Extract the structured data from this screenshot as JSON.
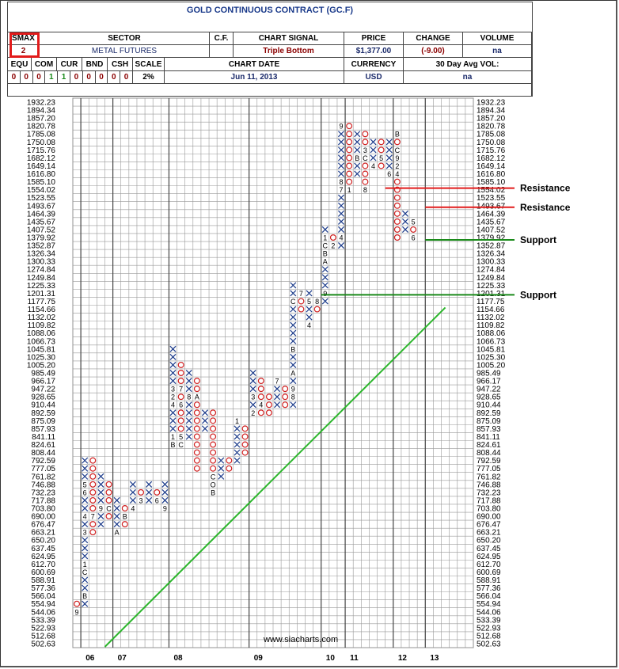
{
  "header": {
    "title": "GOLD CONTINUOUS CONTRACT (GC.F)",
    "smax_label": "SMAX",
    "smax_value": "2",
    "sector_label": "SECTOR",
    "sector_value": "METAL FUTURES",
    "cf_label": "C.F.",
    "chart_signal_label": "CHART SIGNAL",
    "chart_signal_value": "Triple Bottom",
    "price_label": "PRICE",
    "price_value": "$1,377.00",
    "change_label": "CHANGE",
    "change_value": "(-9.00)",
    "volume_label": "VOLUME",
    "volume_value": "na",
    "equ_label": "EQU",
    "com_label": "COM",
    "cur_label": "CUR",
    "bnd_label": "BND",
    "csh_label": "CSH",
    "scale_label": "SCALE",
    "chart_date_label": "CHART DATE",
    "chart_date_value": "Jun 11, 2013",
    "currency_label": "CURRENCY",
    "currency_value": "USD",
    "avg_vol_label": "30 Day Avg VOL:",
    "avg_vol_value": "na",
    "scores": [
      "0",
      "0",
      "0",
      "1",
      "1",
      "0",
      "0",
      "0",
      "0",
      "0"
    ],
    "scale_value": "2%"
  },
  "watermark": "www.siacharts.com",
  "colors": {
    "x_mark": "#1a3a8a",
    "o_mark": "#d02020",
    "resistance": "#e21b1b",
    "support": "#1a8a1a",
    "trend": "#2bb52b",
    "grid": "#888888"
  },
  "chart_data": {
    "type": "point-and-figure",
    "y_ticks": [
      "1932.23",
      "1894.34",
      "1857.20",
      "1820.78",
      "1785.08",
      "1750.08",
      "1715.76",
      "1682.12",
      "1649.14",
      "1616.80",
      "1585.10",
      "1554.02",
      "1523.55",
      "1493.67",
      "1464.39",
      "1435.67",
      "1407.52",
      "1379.92",
      "1352.87",
      "1326.34",
      "1300.33",
      "1274.84",
      "1249.84",
      "1225.33",
      "1201.31",
      "1177.75",
      "1154.66",
      "1132.02",
      "1109.82",
      "1088.06",
      "1066.73",
      "1045.81",
      "1025.30",
      "1005.20",
      "985.49",
      "966.17",
      "947.22",
      "928.65",
      "910.44",
      "892.59",
      "875.09",
      "857.93",
      "841.11",
      "824.61",
      "808.44",
      "792.59",
      "777.05",
      "761.82",
      "746.88",
      "732.23",
      "717.88",
      "703.80",
      "690.00",
      "676.47",
      "663.21",
      "650.20",
      "637.45",
      "624.95",
      "612.70",
      "600.69",
      "588.91",
      "577.36",
      "566.04",
      "554.94",
      "544.06",
      "533.39",
      "522.93",
      "512.68",
      "502.63"
    ],
    "x_labels": [
      "06",
      "07",
      "08",
      "09",
      "10",
      "11",
      "12",
      "13"
    ],
    "columns": [
      {
        "type": "O",
        "top": "554.94",
        "bottom": "544.06",
        "labels": {
          "544.06": "9"
        }
      },
      {
        "type": "X",
        "bottom": "554.94",
        "top": "792.59",
        "labels": {
          "566.04": "B",
          "600.69": "C",
          "612.70": "1",
          "663.21": "3",
          "690.00": "4",
          "746.88": "5",
          "732.23": "6"
        }
      },
      {
        "type": "O",
        "top": "792.59",
        "bottom": "663.21",
        "labels": {
          "690.00": "7"
        }
      },
      {
        "type": "X",
        "bottom": "676.47",
        "top": "761.82",
        "labels": {
          "703.80": "9"
        }
      },
      {
        "type": "O",
        "top": "746.88",
        "bottom": "690.00",
        "labels": {
          "703.80": "C"
        }
      },
      {
        "type": "X",
        "bottom": "663.21",
        "top": "717.88",
        "labels": {
          "663.21": "A"
        }
      },
      {
        "type": "O",
        "top": "703.80",
        "bottom": "676.47",
        "labels": {
          "690.00": "B"
        }
      },
      {
        "type": "X",
        "bottom": "703.80",
        "top": "746.88",
        "labels": {
          "703.80": "4"
        }
      },
      {
        "type": "O",
        "top": "732.23",
        "bottom": "717.88",
        "labels": {
          "717.88": "3"
        }
      },
      {
        "type": "X",
        "bottom": "717.88",
        "top": "746.88",
        "labels": {}
      },
      {
        "type": "O",
        "top": "732.23",
        "bottom": "717.88",
        "labels": {
          "717.88": "6"
        }
      },
      {
        "type": "X",
        "bottom": "703.80",
        "top": "746.88",
        "labels": {
          "703.80": "9"
        }
      },
      {
        "type": "X",
        "bottom": "824.61",
        "top": "1045.81",
        "labels": {
          "824.61": "B",
          "841.11": "1",
          "928.65": "2",
          "947.22": "3",
          "910.44": "4"
        }
      },
      {
        "type": "O",
        "top": "1005.20",
        "bottom": "824.61",
        "labels": {
          "824.61": "C",
          "841.11": "5",
          "947.22": "7",
          "808.44": "9",
          "792.59": "A",
          "910.44": "6"
        }
      },
      {
        "type": "X",
        "bottom": "841.11",
        "top": "985.49",
        "labels": {
          "928.65": "8"
        }
      },
      {
        "type": "O",
        "top": "966.17",
        "bottom": "777.05",
        "labels": {
          "928.65": "A"
        }
      },
      {
        "type": "X",
        "bottom": "857.93",
        "top": "892.59",
        "labels": {}
      },
      {
        "type": "O",
        "top": "892.59",
        "bottom": "732.23",
        "labels": {
          "761.82": "C",
          "746.88": "O",
          "732.23": "B"
        }
      },
      {
        "type": "X",
        "bottom": "761.82",
        "top": "792.59",
        "labels": {}
      },
      {
        "type": "O",
        "top": "792.59",
        "bottom": "777.05",
        "labels": {}
      },
      {
        "type": "X",
        "bottom": "792.59",
        "top": "875.09",
        "labels": {
          "875.09": "1"
        }
      },
      {
        "type": "O",
        "top": "857.93",
        "bottom": "808.44",
        "labels": {}
      },
      {
        "type": "X",
        "bottom": "892.59",
        "top": "985.49",
        "labels": {
          "892.59": "2",
          "928.65": "3"
        }
      },
      {
        "type": "O",
        "top": "966.17",
        "bottom": "892.59",
        "labels": {
          "910.44": "4"
        }
      },
      {
        "type": "O",
        "top": "928.65",
        "bottom": "892.59",
        "labels": {
          "875.09": "5"
        }
      },
      {
        "type": "X",
        "bottom": "910.44",
        "top": "966.17",
        "labels": {
          "966.17": "7"
        }
      },
      {
        "type": "O",
        "top": "947.22",
        "bottom": "910.44",
        "labels": {}
      },
      {
        "type": "X",
        "bottom": "910.44",
        "top": "1225.33",
        "labels": {
          "1045.81": "B",
          "1177.75": "C",
          "928.65": "8",
          "985.49": "A",
          "947.22": "9"
        }
      },
      {
        "type": "O",
        "top": "1201.31",
        "bottom": "1154.66",
        "labels": {
          "1201.31": "7"
        }
      },
      {
        "type": "X",
        "bottom": "1109.82",
        "top": "1201.31",
        "labels": {
          "1109.82": "4",
          "1177.75": "5"
        }
      },
      {
        "type": "O",
        "top": "1177.75",
        "bottom": "1154.66",
        "labels": {
          "1177.75": "8"
        }
      },
      {
        "type": "X",
        "bottom": "1177.75",
        "top": "1407.52",
        "labels": {
          "1201.31": "9",
          "1326.34": "B",
          "1352.87": "C",
          "1300.33": "A",
          "1379.92": "1"
        }
      },
      {
        "type": "O",
        "top": "1379.92",
        "bottom": "1352.87",
        "labels": {
          "1352.87": "2"
        }
      },
      {
        "type": "X",
        "bottom": "1352.87",
        "top": "1820.78",
        "labels": {
          "1379.92": "4",
          "1554.02": "7",
          "1585.10": "8",
          "1820.78": "9"
        }
      },
      {
        "type": "O",
        "top": "1820.78",
        "bottom": "1554.02",
        "labels": {
          "1554.02": "1"
        }
      },
      {
        "type": "X",
        "bottom": "1616.80",
        "top": "1785.08",
        "labels": {
          "1682.12": "B"
        }
      },
      {
        "type": "O",
        "top": "1785.08",
        "bottom": "1554.02",
        "labels": {
          "1682.12": "C",
          "1554.02": "8",
          "1715.76": "3"
        }
      },
      {
        "type": "X",
        "bottom": "1649.14",
        "top": "1750.08",
        "labels": {
          "1649.14": "4"
        }
      },
      {
        "type": "O",
        "top": "1750.08",
        "bottom": "1649.14",
        "labels": {
          "1682.12": "5"
        }
      },
      {
        "type": "X",
        "bottom": "1616.80",
        "top": "1750.08",
        "labels": {
          "1616.80": "6"
        }
      },
      {
        "type": "O",
        "top": "1785.08",
        "bottom": "1379.92",
        "labels": {
          "1785.08": "B",
          "1682.12": "9",
          "1616.80": "4",
          "1649.14": "2",
          "1715.76": "C"
        }
      },
      {
        "type": "X",
        "bottom": "1407.52",
        "top": "1464.39",
        "labels": {}
      },
      {
        "type": "O",
        "top": "1435.67",
        "bottom": "1379.92",
        "labels": {
          "1435.67": "5",
          "1379.92": "6"
        }
      }
    ],
    "resistance_levels": [
      {
        "label": "Resistance",
        "value": "1554.02"
      },
      {
        "label": "Resistance",
        "value": "1493.67"
      }
    ],
    "support_levels": [
      {
        "label": "Support",
        "value": "1352.87"
      },
      {
        "label": "Support",
        "value": "1201.31"
      }
    ]
  }
}
